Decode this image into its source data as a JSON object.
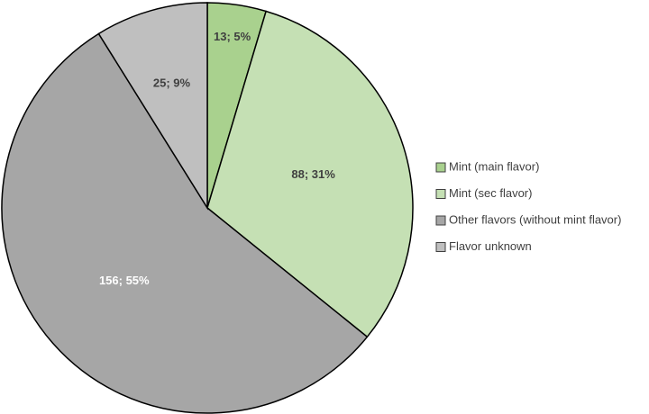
{
  "chart_data": {
    "type": "pie",
    "categories": [
      "Mint (main flavor)",
      "Mint (sec flavor)",
      "Other flavors (without mint flavor)",
      "Flavor unknown"
    ],
    "values": [
      13,
      88,
      156,
      25
    ],
    "value_labels": [
      "13; 5%",
      "88; 31%",
      "156; 55%",
      "25; 9%"
    ],
    "colors": [
      "#a9d18e",
      "#c5e0b4",
      "#a6a6a6",
      "#bfbfbf"
    ],
    "label_colors": [
      "#404040",
      "#404040",
      "#ffffff",
      "#404040"
    ],
    "legend": "right"
  }
}
